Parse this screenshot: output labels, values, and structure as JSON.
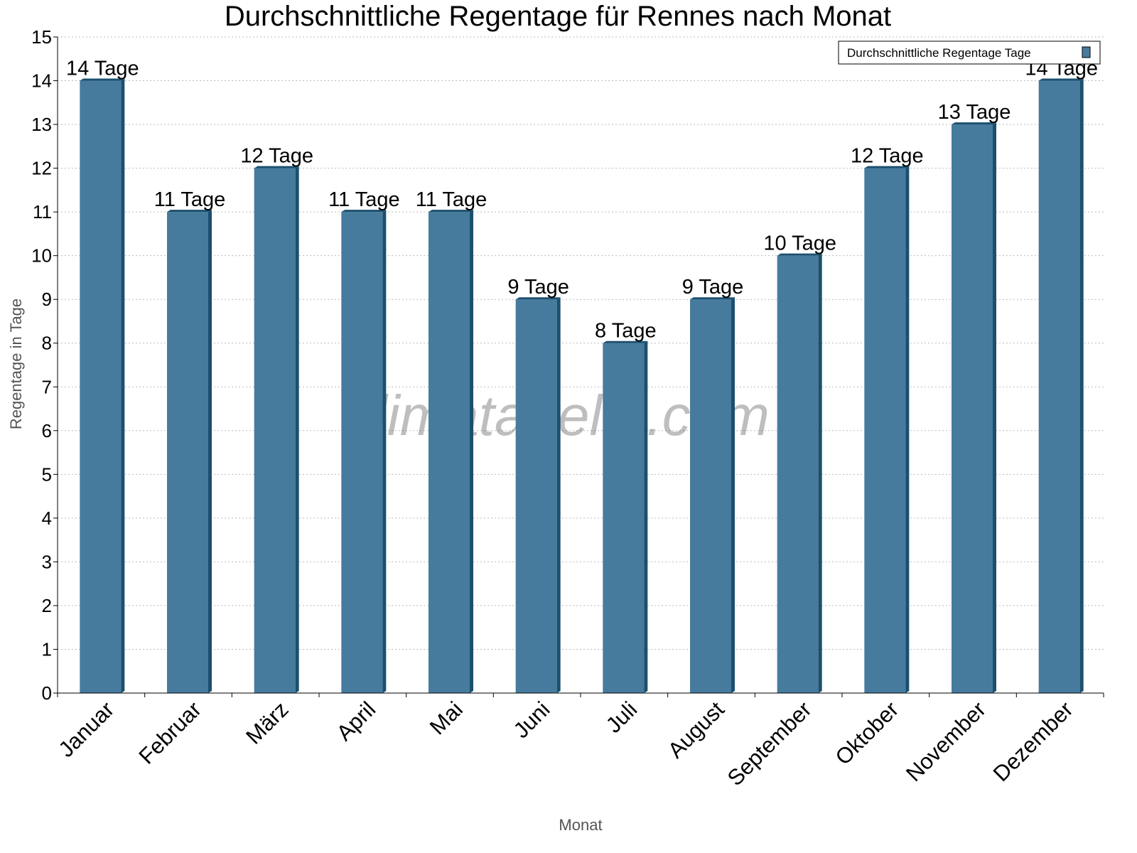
{
  "chart_data": {
    "type": "bar",
    "title": "Durchschnittliche Regentage für Rennes nach Monat",
    "xlabel": "Monat",
    "ylabel": "Regentage in Tage",
    "categories": [
      "Januar",
      "Februar",
      "März",
      "April",
      "Mai",
      "Juni",
      "Juli",
      "August",
      "September",
      "Oktober",
      "November",
      "Dezember"
    ],
    "series": [
      {
        "name": "Durchschnittliche Regentage Tage",
        "values": [
          14,
          11,
          12,
          11,
          11,
          9,
          8,
          9,
          10,
          12,
          13,
          14
        ]
      }
    ],
    "data_labels": [
      "14 Tage",
      "11 Tage",
      "12 Tage",
      "11 Tage",
      "11 Tage",
      "9 Tage",
      "8 Tage",
      "9 Tage",
      "10 Tage",
      "12 Tage",
      "13 Tage",
      "14 Tage"
    ],
    "yticks": [
      0,
      1,
      2,
      3,
      4,
      5,
      6,
      7,
      8,
      9,
      10,
      11,
      12,
      13,
      14,
      15
    ],
    "ylim": [
      0,
      15
    ],
    "grid": true,
    "legend_position": "top-right",
    "colors": {
      "bar": "#467b9e",
      "bar_side": "#1b4f6e"
    },
    "watermark": "klimatabelle.com"
  }
}
